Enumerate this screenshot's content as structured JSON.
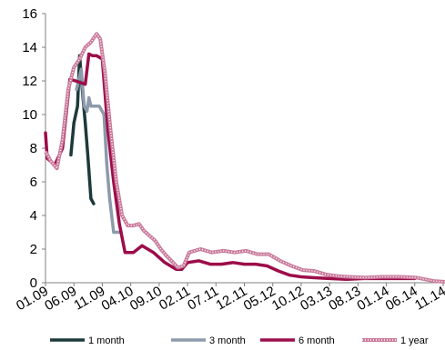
{
  "chart_data": {
    "type": "line",
    "title": "",
    "xlabel": "",
    "ylabel": "",
    "ylim": [
      0,
      16
    ],
    "yticks": [
      "0",
      "2",
      "4",
      "6",
      "8",
      "10",
      "12",
      "14",
      "16"
    ],
    "xlim": [
      "2009-01",
      "2014-11"
    ],
    "xticks": [
      "01.09",
      "06.09",
      "11.09",
      "04.10",
      "09.10",
      "02.11",
      "07.11",
      "12.11",
      "05.12",
      "10.12",
      "03.13",
      "08.13",
      "01.14",
      "06.14",
      "11.14"
    ],
    "grid": false,
    "legend": "bottom",
    "series": [
      {
        "name": "1 month",
        "color": "#1d3a3a",
        "points": [
          [
            "2009-05-15",
            7.6
          ],
          [
            "2009-06-01",
            9.5
          ],
          [
            "2009-06-20",
            10.5
          ],
          [
            "2009-07-01",
            13.5
          ],
          [
            "2009-07-15",
            11.5
          ],
          [
            "2009-08-01",
            9.5
          ],
          [
            "2009-08-15",
            7.5
          ],
          [
            "2009-09-01",
            5.0
          ],
          [
            "2009-09-15",
            4.7
          ]
        ]
      },
      {
        "name": "3 month",
        "color": "#8c9aab",
        "points": [
          [
            "2009-06-15",
            11.5
          ],
          [
            "2009-07-10",
            12.7
          ],
          [
            "2009-07-25",
            10.5
          ],
          [
            "2009-08-10",
            10.2
          ],
          [
            "2009-08-20",
            11.0
          ],
          [
            "2009-09-01",
            10.5
          ],
          [
            "2009-10-15",
            10.5
          ],
          [
            "2009-11-10",
            10.0
          ],
          [
            "2009-11-25",
            7.0
          ],
          [
            "2009-12-10",
            5.0
          ],
          [
            "2010-01-01",
            3.0
          ],
          [
            "2010-02-01",
            3.0
          ]
        ]
      },
      {
        "name": "6 month",
        "color": "#9c0d4a",
        "points": [
          [
            "2009-01-01",
            8.9
          ],
          [
            "2009-01-10",
            7.4
          ],
          [
            "2009-02-20",
            7.0
          ],
          [
            "2009-04-01",
            8.0
          ],
          [
            "2009-05-10",
            12.1
          ],
          [
            "2009-06-10",
            12.0
          ],
          [
            "2009-08-01",
            11.8
          ],
          [
            "2009-08-20",
            13.6
          ],
          [
            "2009-09-10",
            13.5
          ],
          [
            "2009-10-01",
            13.5
          ],
          [
            "2009-11-01",
            13.3
          ],
          [
            "2009-12-01",
            9.0
          ],
          [
            "2010-01-01",
            6.0
          ],
          [
            "2010-02-01",
            3.5
          ],
          [
            "2010-03-01",
            1.8
          ],
          [
            "2010-04-15",
            1.8
          ],
          [
            "2010-06-01",
            2.2
          ],
          [
            "2010-08-01",
            1.8
          ],
          [
            "2010-10-01",
            1.2
          ],
          [
            "2010-12-01",
            0.8
          ],
          [
            "2011-01-01",
            0.8
          ],
          [
            "2011-02-01",
            1.2
          ],
          [
            "2011-04-01",
            1.3
          ],
          [
            "2011-06-01",
            1.1
          ],
          [
            "2011-08-01",
            1.1
          ],
          [
            "2011-10-01",
            1.2
          ],
          [
            "2011-12-01",
            1.1
          ],
          [
            "2012-02-01",
            1.1
          ],
          [
            "2012-04-01",
            1.0
          ],
          [
            "2012-06-01",
            0.7
          ],
          [
            "2012-08-01",
            0.45
          ],
          [
            "2012-10-01",
            0.35
          ],
          [
            "2012-12-01",
            0.3
          ],
          [
            "2013-03-01",
            0.25
          ],
          [
            "2013-06-01",
            0.2
          ],
          [
            "2013-09-01",
            0.25
          ],
          [
            "2014-01-01",
            0.25
          ],
          [
            "2014-06-01",
            0.25
          ]
        ]
      },
      {
        "name": "1 year",
        "color": "#c97a9b",
        "points": [
          [
            "2009-01-01",
            7.8
          ],
          [
            "2009-02-01",
            7.2
          ],
          [
            "2009-03-01",
            6.8
          ],
          [
            "2009-04-01",
            8.5
          ],
          [
            "2009-05-01",
            11.5
          ],
          [
            "2009-06-01",
            12.8
          ],
          [
            "2009-07-01",
            13.3
          ],
          [
            "2009-08-01",
            14.0
          ],
          [
            "2009-09-01",
            14.3
          ],
          [
            "2009-10-01",
            14.8
          ],
          [
            "2009-10-20",
            14.5
          ],
          [
            "2009-11-15",
            12.5
          ],
          [
            "2009-12-15",
            9.0
          ],
          [
            "2010-01-15",
            6.0
          ],
          [
            "2010-02-15",
            4.0
          ],
          [
            "2010-03-15",
            3.4
          ],
          [
            "2010-04-15",
            3.4
          ],
          [
            "2010-05-15",
            3.5
          ],
          [
            "2010-06-10",
            3.1
          ],
          [
            "2010-07-10",
            2.8
          ],
          [
            "2010-08-10",
            2.5
          ],
          [
            "2010-09-10",
            2.0
          ],
          [
            "2010-10-10",
            1.6
          ],
          [
            "2010-12-10",
            0.9
          ],
          [
            "2011-01-10",
            1.0
          ],
          [
            "2011-02-10",
            1.8
          ],
          [
            "2011-04-10",
            2.0
          ],
          [
            "2011-06-10",
            1.8
          ],
          [
            "2011-08-10",
            1.9
          ],
          [
            "2011-10-10",
            1.8
          ],
          [
            "2011-12-10",
            1.9
          ],
          [
            "2012-02-10",
            1.7
          ],
          [
            "2012-04-10",
            1.7
          ],
          [
            "2012-06-10",
            1.3
          ],
          [
            "2012-08-10",
            1.0
          ],
          [
            "2012-10-10",
            0.75
          ],
          [
            "2012-12-10",
            0.7
          ],
          [
            "2013-02-10",
            0.5
          ],
          [
            "2013-04-10",
            0.4
          ],
          [
            "2013-06-10",
            0.35
          ],
          [
            "2013-09-10",
            0.3
          ],
          [
            "2013-12-10",
            0.35
          ],
          [
            "2014-03-10",
            0.35
          ],
          [
            "2014-06-10",
            0.3
          ],
          [
            "2014-09-10",
            0.1
          ],
          [
            "2014-11-15",
            0.05
          ]
        ]
      }
    ]
  }
}
